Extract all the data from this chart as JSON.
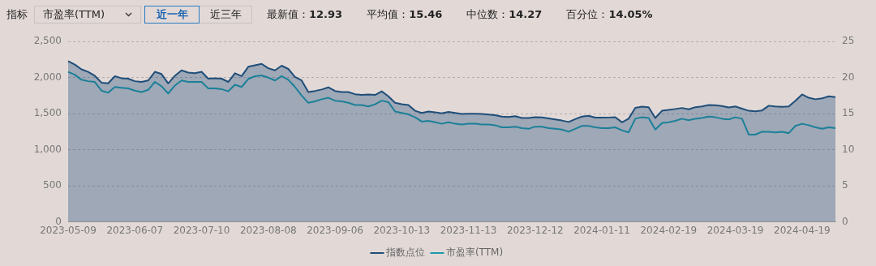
{
  "chart_data": {
    "type": "line",
    "annotations": [
      "指标",
      "市盈率(TTM)",
      "近一年",
      "近三年",
      "最新值：12.93",
      "平均值：15.46",
      "中位数：14.27",
      "百分位：14.05%"
    ],
    "categories": [
      "2023-05-09",
      null,
      null,
      null,
      null,
      null,
      null,
      null,
      null,
      null,
      "2023-06-07",
      null,
      null,
      null,
      null,
      null,
      null,
      null,
      null,
      null,
      "2023-07-10",
      null,
      null,
      null,
      null,
      null,
      null,
      null,
      null,
      null,
      "2023-08-08",
      null,
      null,
      null,
      null,
      null,
      null,
      null,
      null,
      null,
      "2023-09-06",
      null,
      null,
      null,
      null,
      null,
      null,
      null,
      null,
      null,
      "2023-10-13",
      null,
      null,
      null,
      null,
      null,
      null,
      null,
      null,
      null,
      "2023-11-13",
      null,
      null,
      null,
      null,
      null,
      null,
      null,
      null,
      null,
      "2023-12-12",
      null,
      null,
      null,
      null,
      null,
      null,
      null,
      null,
      null,
      "2024-01-11",
      null,
      null,
      null,
      null,
      null,
      null,
      null,
      null,
      null,
      "2024-02-19",
      null,
      null,
      null,
      null,
      null,
      null,
      null,
      null,
      null,
      "2024-03-19",
      null,
      null,
      null,
      null,
      null,
      null,
      null,
      null,
      null,
      "2024-04-19",
      null,
      null,
      null,
      null,
      null
    ],
    "series": [
      {
        "name": "指数点位",
        "type": "area",
        "color": "#1f4e79",
        "values": [
          2229,
          2180,
          2115,
          2079,
          2025,
          1930,
          1920,
          2019,
          1992,
          1985,
          1950,
          1940,
          1960,
          2080,
          2049,
          1920,
          2025,
          2100,
          2070,
          2060,
          2080,
          1985,
          1990,
          1985,
          1940,
          2060,
          2020,
          2150,
          2170,
          2190,
          2130,
          2100,
          2165,
          2120,
          2010,
          1960,
          1800,
          1815,
          1835,
          1865,
          1815,
          1800,
          1800,
          1770,
          1760,
          1765,
          1760,
          1810,
          1740,
          1650,
          1630,
          1620,
          1540,
          1510,
          1530,
          1520,
          1505,
          1525,
          1510,
          1495,
          1500,
          1500,
          1495,
          1488,
          1480,
          1460,
          1455,
          1465,
          1440,
          1440,
          1452,
          1448,
          1435,
          1420,
          1405,
          1385,
          1425,
          1460,
          1470,
          1445,
          1445,
          1447,
          1452,
          1380,
          1430,
          1580,
          1598,
          1590,
          1440,
          1540,
          1553,
          1565,
          1579,
          1560,
          1590,
          1600,
          1620,
          1618,
          1605,
          1585,
          1600,
          1570,
          1540,
          1532,
          1545,
          1610,
          1600,
          1595,
          1600,
          1680,
          1767,
          1720,
          1700,
          1712,
          1740,
          1730
        ]
      },
      {
        "name": "市盈率(TTM)",
        "type": "line",
        "axis": "y2",
        "color": "#1a9bab",
        "values": [
          20.8,
          20.4,
          19.7,
          19.5,
          19.4,
          18.2,
          17.9,
          18.7,
          18.6,
          18.5,
          18.2,
          18.0,
          18.3,
          19.4,
          18.8,
          17.8,
          18.9,
          19.6,
          19.4,
          19.4,
          19.4,
          18.5,
          18.5,
          18.4,
          18.1,
          19.0,
          18.7,
          19.8,
          20.2,
          20.3,
          20.0,
          19.6,
          20.2,
          19.7,
          18.7,
          17.5,
          16.5,
          16.7,
          17.0,
          17.2,
          16.8,
          16.7,
          16.5,
          16.2,
          16.2,
          16.0,
          16.3,
          16.8,
          16.6,
          15.3,
          15.1,
          14.9,
          14.5,
          13.9,
          14.0,
          13.8,
          13.6,
          13.8,
          13.6,
          13.5,
          13.6,
          13.6,
          13.5,
          13.5,
          13.4,
          13.1,
          13.1,
          13.2,
          13.0,
          12.9,
          13.2,
          13.2,
          13.0,
          12.9,
          12.8,
          12.5,
          12.9,
          13.3,
          13.3,
          13.1,
          13.0,
          13.0,
          13.1,
          12.7,
          12.4,
          14.3,
          14.5,
          14.4,
          12.8,
          13.7,
          13.8,
          14.0,
          14.3,
          14.1,
          14.3,
          14.4,
          14.6,
          14.5,
          14.3,
          14.2,
          14.5,
          14.3,
          12.1,
          12.1,
          12.5,
          12.5,
          12.4,
          12.5,
          12.3,
          13.3,
          13.6,
          13.4,
          13.1,
          12.9,
          13.1,
          13.0
        ]
      }
    ],
    "ylim": [
      0,
      2500
    ],
    "yticks": [
      0,
      {
        "value": 500,
        "label": "500"
      },
      {
        "value": 1000,
        "label": "1,000"
      },
      {
        "value": 1500,
        "label": "1,500"
      },
      {
        "value": 2000,
        "label": "2,000"
      },
      {
        "value": 2500,
        "label": "2,500"
      }
    ],
    "y2lim": [
      0,
      25
    ],
    "y2ticks": [
      0,
      5,
      10,
      15,
      20,
      25
    ],
    "grid": "y",
    "legend": "bottom",
    "marker": "none",
    "line_style": "solid"
  }
}
